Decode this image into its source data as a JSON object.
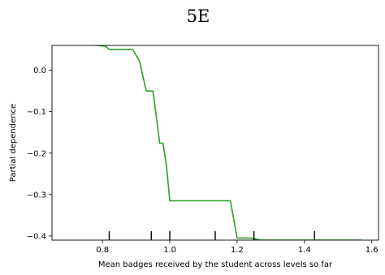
{
  "chart_data": {
    "type": "line",
    "title": "5E",
    "xlabel": "Mean badges received by the student across levels so far",
    "ylabel": "Partial dependence",
    "xlim": [
      0.65,
      1.62
    ],
    "ylim": [
      -0.41,
      0.06
    ],
    "x_ticks": [
      0.8,
      1.0,
      1.2,
      1.4,
      1.6
    ],
    "x_tick_labels": [
      "0.8",
      "1.0",
      "1.2",
      "1.4",
      "1.6"
    ],
    "y_ticks": [
      0.0,
      -0.1,
      -0.2,
      -0.3,
      -0.4
    ],
    "y_tick_labels": [
      "0.0",
      "−0.1",
      "−0.2",
      "−0.3",
      "−0.4"
    ],
    "grid": false,
    "series": [
      {
        "color": "#2ca02c",
        "x": [
          0.65,
          0.81,
          0.82,
          0.89,
          0.91,
          0.93,
          0.95,
          0.97,
          0.98,
          0.99,
          1.0,
          1.05,
          1.1,
          1.15,
          1.18,
          1.2,
          1.24,
          1.27,
          1.3,
          1.4,
          1.5,
          1.57
        ],
        "y": [
          0.07,
          0.058,
          0.05,
          0.05,
          0.022,
          -0.05,
          -0.05,
          -0.176,
          -0.176,
          -0.23,
          -0.315,
          -0.315,
          -0.315,
          -0.315,
          -0.315,
          -0.405,
          -0.405,
          -0.41,
          -0.41,
          -0.41,
          -0.41,
          -0.41
        ]
      }
    ],
    "rug": {
      "color": "#000000",
      "x": [
        0.82,
        0.945,
        1.0,
        1.135,
        1.25,
        1.43
      ]
    }
  }
}
